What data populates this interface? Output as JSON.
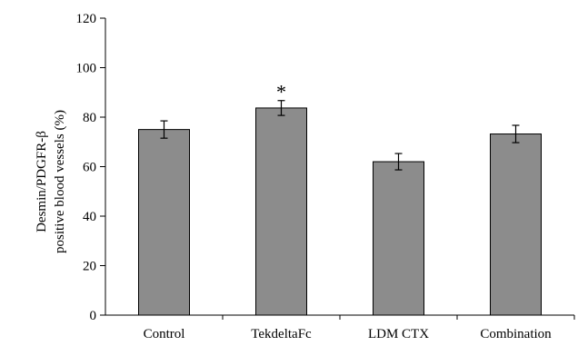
{
  "chart_data": {
    "type": "bar",
    "categories": [
      "Control",
      "TekdeltaFc",
      "LDM CTX",
      "Combination"
    ],
    "values": [
      75,
      83.7,
      62,
      73.2
    ],
    "errors": [
      3.5,
      3,
      3.3,
      3.5
    ],
    "annotations": [
      "",
      "*",
      "",
      ""
    ],
    "ylabel_lines": [
      "Desmin/PDGFR-β",
      "positive blood vessels (%)"
    ],
    "ylim": [
      0,
      120
    ],
    "yticks": [
      "0",
      "20",
      "40",
      "60",
      "80",
      "100",
      "120"
    ],
    "grid": false,
    "legend": "none",
    "colors": {
      "bar": "#8c8c8c",
      "edge": "#000000",
      "axis": "#000000"
    }
  }
}
